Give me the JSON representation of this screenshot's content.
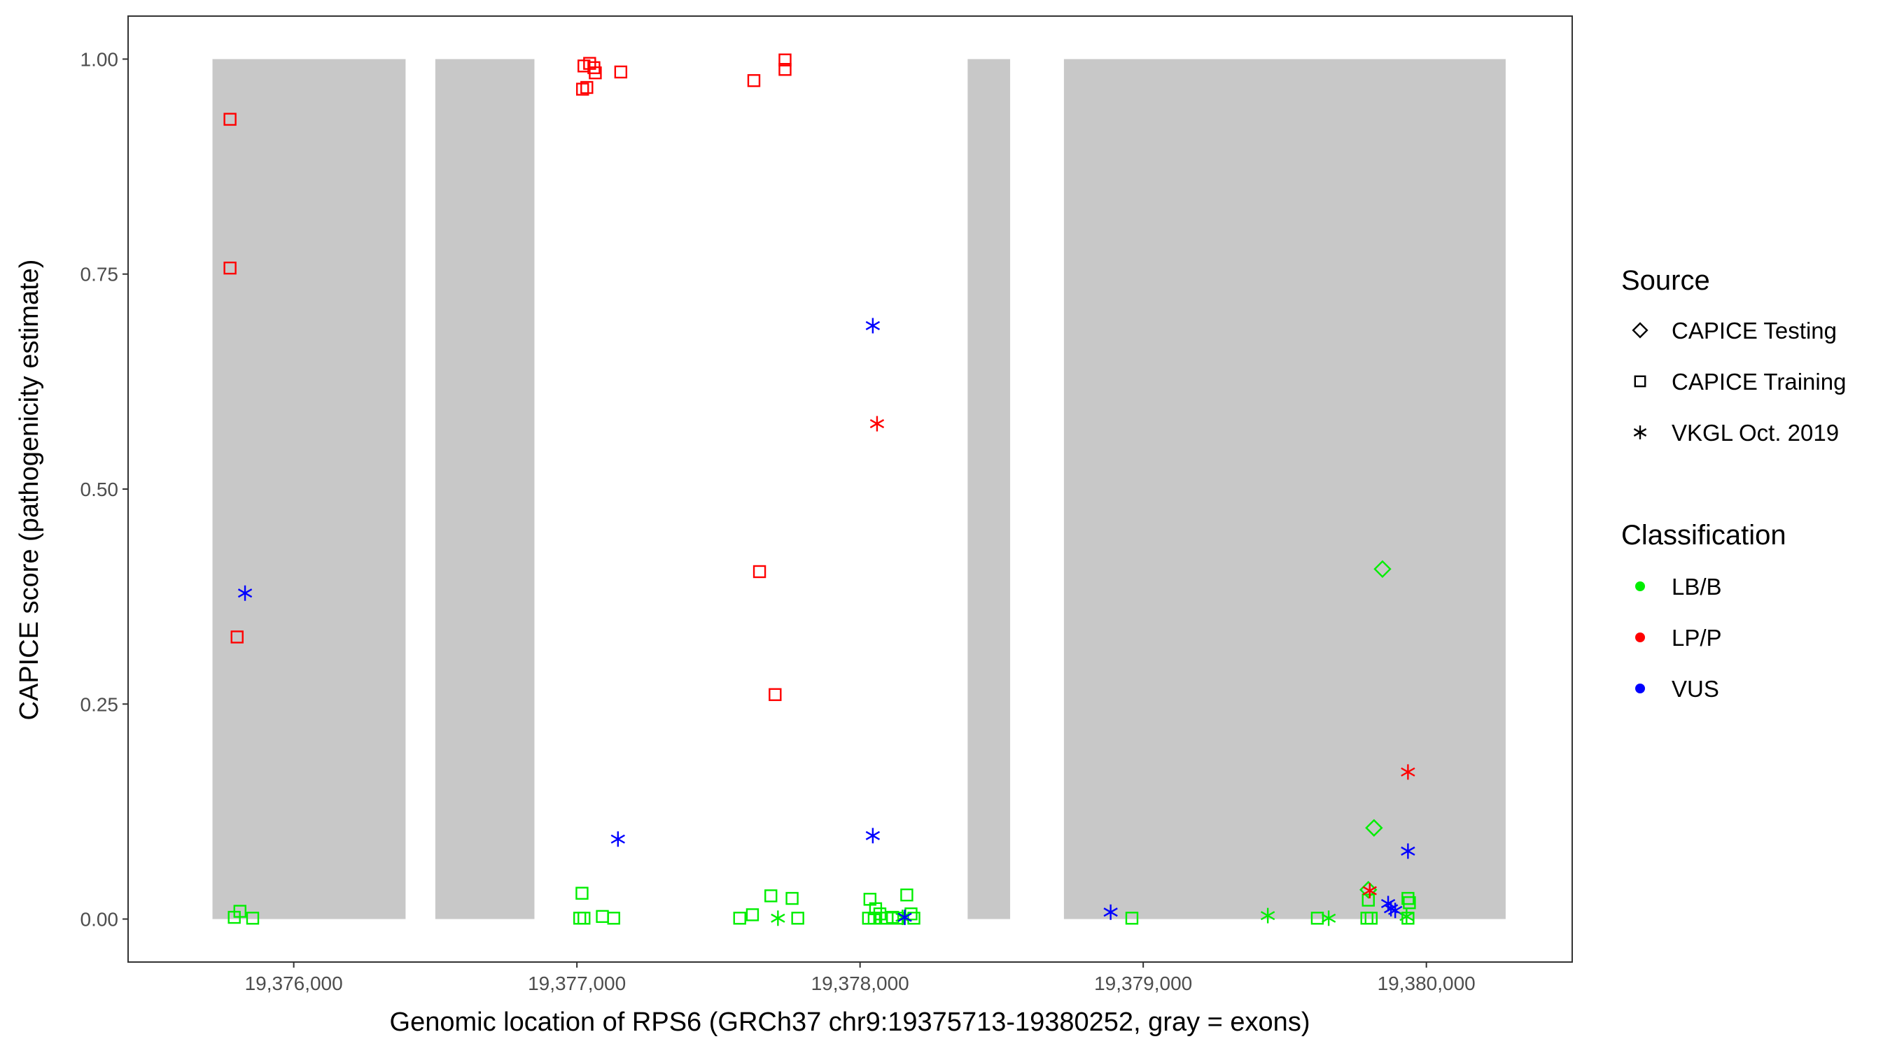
{
  "chart_data": {
    "type": "scatter",
    "title": "",
    "xlabel": "Genomic location of RPS6 (GRCh37 chr9:19375713-19380252, gray = exons)",
    "ylabel": "CAPICE score (pathogenicity estimate)",
    "xlim": [
      19375415,
      19380515
    ],
    "ylim": [
      -0.05,
      1.05
    ],
    "x_ticks": [
      19376000,
      19377000,
      19378000,
      19379000,
      19380000
    ],
    "x_tick_labels": [
      "19,376,000",
      "19,377,000",
      "19,378,000",
      "19,379,000",
      "19,380,000"
    ],
    "y_ticks": [
      0,
      0.25,
      0.5,
      0.75,
      1
    ],
    "y_tick_labels": [
      "0.00",
      "0.25",
      "0.50",
      "0.75",
      "1.00"
    ],
    "grid": false,
    "exons": [
      [
        19375713,
        19376395
      ],
      [
        19376500,
        19376850
      ],
      [
        19378380,
        19378530
      ],
      [
        19378720,
        19380280
      ]
    ],
    "colors": {
      "LB/B": "#00ee00",
      "LP/P": "#ff0000",
      "VUS": "#0000ff",
      "exon": "#c8c8c8",
      "panel_border": "#333333"
    },
    "legend": {
      "placement": "right",
      "source_title": "Source",
      "source_items": [
        {
          "label": "CAPICE Testing",
          "shape": "diamond"
        },
        {
          "label": "CAPICE Training",
          "shape": "square"
        },
        {
          "label": "VKGL Oct. 2019",
          "shape": "asterisk"
        }
      ],
      "classification_title": "Classification",
      "classification_items": [
        {
          "label": "LB/B",
          "color": "#00ee00"
        },
        {
          "label": "LP/P",
          "color": "#ff0000"
        },
        {
          "label": "VUS",
          "color": "#0000ff"
        }
      ]
    },
    "points": [
      {
        "x": 19375775,
        "y": 0.93,
        "source": "CAPICE Training",
        "class": "LP/P"
      },
      {
        "x": 19375775,
        "y": 0.757,
        "source": "CAPICE Training",
        "class": "LP/P"
      },
      {
        "x": 19375800,
        "y": 0.328,
        "source": "CAPICE Training",
        "class": "LP/P"
      },
      {
        "x": 19375828,
        "y": 0.379,
        "source": "VKGL Oct. 2019",
        "class": "VUS"
      },
      {
        "x": 19375790,
        "y": 0.002,
        "source": "CAPICE Training",
        "class": "LB/B"
      },
      {
        "x": 19375810,
        "y": 0.009,
        "source": "CAPICE Training",
        "class": "LB/B"
      },
      {
        "x": 19375855,
        "y": 0.001,
        "source": "CAPICE Training",
        "class": "LB/B"
      },
      {
        "x": 19377025,
        "y": 0.992,
        "source": "CAPICE Training",
        "class": "LP/P"
      },
      {
        "x": 19377045,
        "y": 0.995,
        "source": "CAPICE Training",
        "class": "LP/P"
      },
      {
        "x": 19377060,
        "y": 0.99,
        "source": "CAPICE Training",
        "class": "LP/P"
      },
      {
        "x": 19377065,
        "y": 0.984,
        "source": "CAPICE Training",
        "class": "LP/P"
      },
      {
        "x": 19377020,
        "y": 0.965,
        "source": "CAPICE Training",
        "class": "LP/P"
      },
      {
        "x": 19377035,
        "y": 0.967,
        "source": "CAPICE Training",
        "class": "LP/P"
      },
      {
        "x": 19377155,
        "y": 0.985,
        "source": "CAPICE Training",
        "class": "LP/P"
      },
      {
        "x": 19377018,
        "y": 0.03,
        "source": "CAPICE Training",
        "class": "LB/B"
      },
      {
        "x": 19377010,
        "y": 0.001,
        "source": "CAPICE Training",
        "class": "LB/B"
      },
      {
        "x": 19377025,
        "y": 0.001,
        "source": "CAPICE Training",
        "class": "LB/B"
      },
      {
        "x": 19377090,
        "y": 0.003,
        "source": "CAPICE Training",
        "class": "LB/B"
      },
      {
        "x": 19377130,
        "y": 0.001,
        "source": "CAPICE Training",
        "class": "LB/B"
      },
      {
        "x": 19377145,
        "y": 0.093,
        "source": "VKGL Oct. 2019",
        "class": "VUS"
      },
      {
        "x": 19377735,
        "y": 0.999,
        "source": "CAPICE Training",
        "class": "LP/P"
      },
      {
        "x": 19377735,
        "y": 0.988,
        "source": "CAPICE Training",
        "class": "LP/P"
      },
      {
        "x": 19377625,
        "y": 0.975,
        "source": "CAPICE Training",
        "class": "LP/P"
      },
      {
        "x": 19377645,
        "y": 0.404,
        "source": "CAPICE Training",
        "class": "LP/P"
      },
      {
        "x": 19377700,
        "y": 0.261,
        "source": "CAPICE Training",
        "class": "LP/P"
      },
      {
        "x": 19377575,
        "y": 0.001,
        "source": "CAPICE Training",
        "class": "LB/B"
      },
      {
        "x": 19377620,
        "y": 0.005,
        "source": "CAPICE Training",
        "class": "LB/B"
      },
      {
        "x": 19377685,
        "y": 0.027,
        "source": "CAPICE Training",
        "class": "LB/B"
      },
      {
        "x": 19377710,
        "y": 0.001,
        "source": "VKGL Oct. 2019",
        "class": "LB/B"
      },
      {
        "x": 19377760,
        "y": 0.024,
        "source": "CAPICE Training",
        "class": "LB/B"
      },
      {
        "x": 19377780,
        "y": 0.001,
        "source": "CAPICE Training",
        "class": "LB/B"
      },
      {
        "x": 19378045,
        "y": 0.69,
        "source": "VKGL Oct. 2019",
        "class": "VUS"
      },
      {
        "x": 19378060,
        "y": 0.576,
        "source": "VKGL Oct. 2019",
        "class": "LP/P"
      },
      {
        "x": 19378045,
        "y": 0.097,
        "source": "VKGL Oct. 2019",
        "class": "VUS"
      },
      {
        "x": 19378035,
        "y": 0.023,
        "source": "CAPICE Training",
        "class": "LB/B"
      },
      {
        "x": 19378055,
        "y": 0.012,
        "source": "CAPICE Training",
        "class": "LB/B"
      },
      {
        "x": 19378070,
        "y": 0.006,
        "source": "CAPICE Training",
        "class": "LB/B"
      },
      {
        "x": 19378030,
        "y": 0.001,
        "source": "CAPICE Training",
        "class": "LB/B"
      },
      {
        "x": 19378050,
        "y": 0.001,
        "source": "CAPICE Training",
        "class": "LB/B"
      },
      {
        "x": 19378075,
        "y": 0.001,
        "source": "CAPICE Training",
        "class": "LB/B"
      },
      {
        "x": 19378095,
        "y": 0.001,
        "source": "CAPICE Training",
        "class": "LB/B"
      },
      {
        "x": 19378115,
        "y": 0.002,
        "source": "CAPICE Training",
        "class": "LB/B"
      },
      {
        "x": 19378135,
        "y": 0.001,
        "source": "CAPICE Training",
        "class": "LB/B"
      },
      {
        "x": 19378165,
        "y": 0.028,
        "source": "CAPICE Training",
        "class": "LB/B"
      },
      {
        "x": 19378180,
        "y": 0.006,
        "source": "CAPICE Training",
        "class": "LB/B"
      },
      {
        "x": 19378190,
        "y": 0.001,
        "source": "CAPICE Training",
        "class": "LB/B"
      },
      {
        "x": 19378150,
        "y": 0.002,
        "source": "VKGL Oct. 2019",
        "class": "LB/B"
      },
      {
        "x": 19378158,
        "y": 0.002,
        "source": "VKGL Oct. 2019",
        "class": "VUS"
      },
      {
        "x": 19378885,
        "y": 0.008,
        "source": "VKGL Oct. 2019",
        "class": "VUS"
      },
      {
        "x": 19378960,
        "y": 0.001,
        "source": "CAPICE Training",
        "class": "LB/B"
      },
      {
        "x": 19379440,
        "y": 0.004,
        "source": "VKGL Oct. 2019",
        "class": "LB/B"
      },
      {
        "x": 19379615,
        "y": 0.001,
        "source": "CAPICE Training",
        "class": "LB/B"
      },
      {
        "x": 19379655,
        "y": 0.001,
        "source": "VKGL Oct. 2019",
        "class": "LB/B"
      },
      {
        "x": 19379845,
        "y": 0.407,
        "source": "CAPICE Testing",
        "class": "LB/B"
      },
      {
        "x": 19379815,
        "y": 0.106,
        "source": "CAPICE Testing",
        "class": "LB/B"
      },
      {
        "x": 19379795,
        "y": 0.034,
        "source": "CAPICE Testing",
        "class": "LB/B"
      },
      {
        "x": 19379795,
        "y": 0.022,
        "source": "CAPICE Training",
        "class": "LB/B"
      },
      {
        "x": 19379790,
        "y": 0.001,
        "source": "CAPICE Training",
        "class": "LB/B"
      },
      {
        "x": 19379805,
        "y": 0.001,
        "source": "CAPICE Training",
        "class": "LB/B"
      },
      {
        "x": 19379800,
        "y": 0.033,
        "source": "VKGL Oct. 2019",
        "class": "LP/P"
      },
      {
        "x": 19379935,
        "y": 0.171,
        "source": "VKGL Oct. 2019",
        "class": "LP/P"
      },
      {
        "x": 19379935,
        "y": 0.079,
        "source": "VKGL Oct. 2019",
        "class": "VUS"
      },
      {
        "x": 19379865,
        "y": 0.018,
        "source": "VKGL Oct. 2019",
        "class": "VUS"
      },
      {
        "x": 19379875,
        "y": 0.012,
        "source": "VKGL Oct. 2019",
        "class": "VUS"
      },
      {
        "x": 19379890,
        "y": 0.01,
        "source": "VKGL Oct. 2019",
        "class": "VUS"
      },
      {
        "x": 19379935,
        "y": 0.024,
        "source": "CAPICE Training",
        "class": "LB/B"
      },
      {
        "x": 19379940,
        "y": 0.019,
        "source": "CAPICE Training",
        "class": "LB/B"
      },
      {
        "x": 19379930,
        "y": 0.003,
        "source": "VKGL Oct. 2019",
        "class": "LB/B"
      },
      {
        "x": 19379935,
        "y": 0.001,
        "source": "CAPICE Training",
        "class": "LB/B"
      }
    ]
  }
}
